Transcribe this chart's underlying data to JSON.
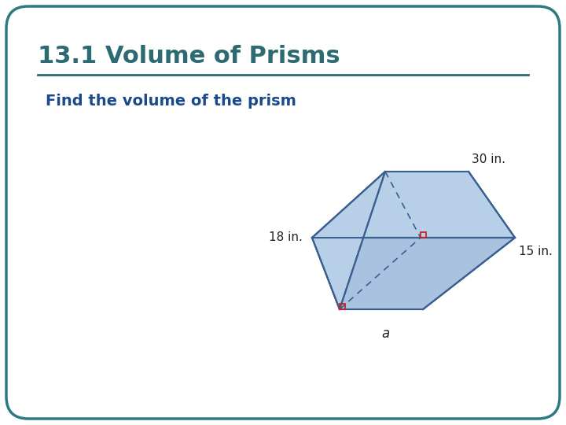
{
  "title": "13.1 Volume of Prisms",
  "subtitle": "Find the volume of the prism",
  "title_color": "#2d6b72",
  "subtitle_color": "#1a4a8a",
  "bg_color": "#ffffff",
  "border_color": "#2d7a82",
  "prism_face_light": "#b8cfe8",
  "prism_face_mid": "#a8c2e0",
  "prism_face_dark": "#98b5d8",
  "prism_edge_color": "#3a6090",
  "label_30": "30 in.",
  "label_18": "18 in.",
  "label_15": "15 in.",
  "label_a": "a",
  "right_angle_color": "#cc2222",
  "dashed_color": "#3a6090",
  "line_color": "#2d6b72"
}
